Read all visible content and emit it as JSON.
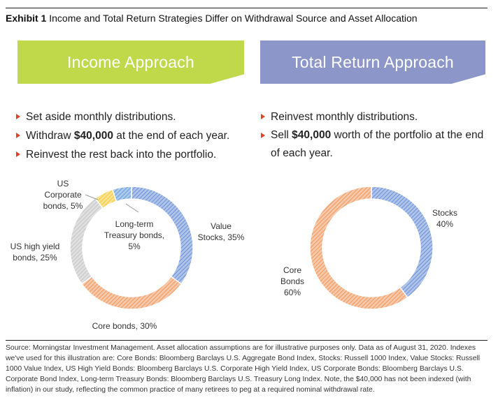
{
  "exhibit": {
    "label": "Exhibit 1",
    "title": "Income and Total Return Strategies Differ on Withdrawal Source and Asset Allocation"
  },
  "income": {
    "banner": "Income Approach",
    "bullets": {
      "b1": "Set aside monthly distributions.",
      "b2_pre": "Withdraw ",
      "b2_bold": "$40,000",
      "b2_post": " at the end of each year.",
      "b3": "Reinvest the rest back into the portfolio."
    }
  },
  "total_return": {
    "banner": "Total Return Approach",
    "bullets": {
      "b1": "Reinvest monthly distributions.",
      "b2_pre": "Sell ",
      "b2_bold": "$40,000",
      "b2_post": " worth of the portfolio at the end of each year."
    }
  },
  "chart_data": [
    {
      "type": "pie",
      "title": "",
      "categories": [
        "Value Stocks",
        "Core bonds",
        "US high yield bonds",
        "US Corporate bonds",
        "Long-term Treasury bonds"
      ],
      "values": [
        35,
        30,
        25,
        5,
        5
      ],
      "colors": [
        "#6f93d8",
        "#f09a62",
        "#c6c6c6",
        "#f4cc3a",
        "#6aa0dc"
      ],
      "labels": {
        "value_stocks": [
          "Value",
          "Stocks, 35%"
        ],
        "core_bonds": [
          "Core bonds, 30%"
        ],
        "us_high_yield": [
          "US high yield",
          "bonds, 25%"
        ],
        "us_corporate": [
          "US",
          "Corporate",
          "bonds, 5%"
        ],
        "long_term_treasury": [
          "Long-term",
          "Treasury bonds,",
          "5%"
        ]
      }
    },
    {
      "type": "pie",
      "title": "",
      "categories": [
        "Stocks",
        "Core Bonds"
      ],
      "values": [
        40,
        60
      ],
      "colors": [
        "#6f93d8",
        "#f09a62"
      ],
      "labels": {
        "stocks": [
          "Stocks",
          "40%"
        ],
        "core_bonds": [
          "Core",
          "Bonds",
          "60%"
        ]
      }
    }
  ],
  "source_note": "Source: Morningstar Investment Management. Asset allocation assumptions are for illustrative purposes only. Data as of August 31, 2020. Indexes we've used for this illustration are: Core Bonds: Bloomberg Barclays U.S. Aggregate Bond Index, Stocks: Russell 1000 Index, Value Stocks: Russell 1000 Value Index, US High Yield Bonds: Bloomberg Barclays U.S. Corporate High Yield Index, US Corporate Bonds: Bloomberg Barclays U.S. Corporate Bond Index, Long-term Treasury Bonds: Bloomberg Barclays U.S. Treasury Long Index. Note, the $40,000 has not been indexed (with inflation) in our study, reflecting the common practice of many retirees to peg at a required nominal withdrawal rate."
}
